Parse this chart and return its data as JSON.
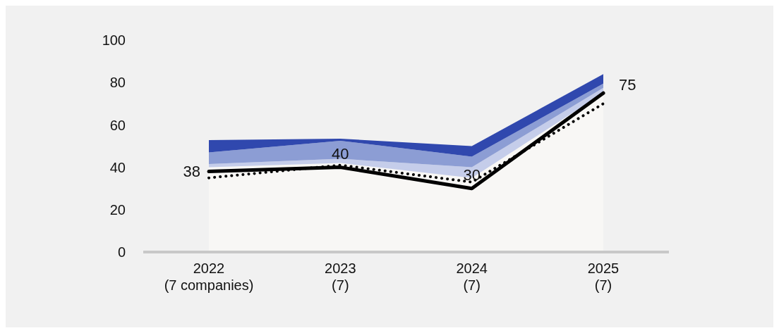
{
  "chart_data": {
    "type": "area",
    "stacked": true,
    "categories": [
      "2022\n(7 companies)",
      "2023\n(7)",
      "2024\n(7)",
      "2025\n(7)"
    ],
    "ylim": [
      0,
      100
    ],
    "yticks": [
      0,
      20,
      40,
      60,
      80,
      100
    ],
    "grid": false,
    "legend": false,
    "series": [
      {
        "color": "#f8f7f5",
        "values": [
          40,
          42,
          35,
          75
        ]
      },
      {
        "color": "#c5cdea",
        "values": [
          1.5,
          2,
          5,
          2.5
        ]
      },
      {
        "color": "#8c9dd4",
        "values": [
          5.5,
          8.5,
          5,
          2
        ]
      },
      {
        "color": "#3048ae",
        "values": [
          5.8,
          1,
          5,
          4.5
        ]
      },
      {
        "type": "line",
        "color": "#000000",
        "line_style": "solid",
        "values": [
          38,
          40,
          30,
          75
        ],
        "value_labels": [
          "38",
          "40",
          "30",
          "75"
        ]
      },
      {
        "type": "line",
        "color": "#000000",
        "line_style": "dotted",
        "values": [
          35,
          41,
          33,
          70
        ]
      }
    ]
  }
}
